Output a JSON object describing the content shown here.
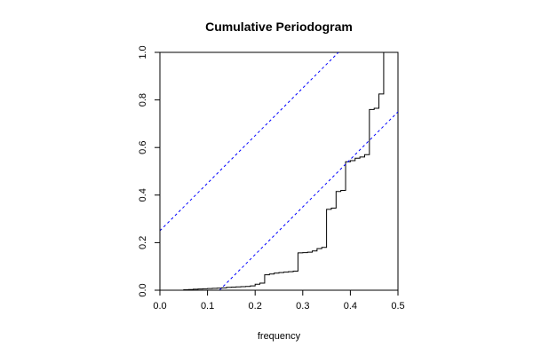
{
  "chart_data": {
    "type": "line",
    "title": "Cumulative Periodogram",
    "xlabel": "frequency",
    "ylabel": "",
    "xlim": [
      0.0,
      0.5
    ],
    "ylim": [
      0.0,
      1.0
    ],
    "x_ticks": [
      0.0,
      0.1,
      0.2,
      0.3,
      0.4,
      0.5
    ],
    "x_tick_labels": [
      "0.0",
      "0.1",
      "0.2",
      "0.3",
      "0.4",
      "0.5"
    ],
    "y_ticks": [
      0.0,
      0.2,
      0.4,
      0.6,
      0.8,
      1.0
    ],
    "y_tick_labels": [
      "0.0",
      "0.2",
      "0.4",
      "0.6",
      "0.8",
      "1.0"
    ],
    "grid": false,
    "legend": "none",
    "series": [
      {
        "style": "step",
        "color": "#000000",
        "x": [
          0.0,
          0.05,
          0.06,
          0.07,
          0.08,
          0.09,
          0.1,
          0.11,
          0.12,
          0.13,
          0.14,
          0.15,
          0.16,
          0.17,
          0.18,
          0.19,
          0.2,
          0.21,
          0.22,
          0.23,
          0.24,
          0.25,
          0.26,
          0.27,
          0.28,
          0.29,
          0.3,
          0.31,
          0.32,
          0.33,
          0.34,
          0.35,
          0.36,
          0.37,
          0.38,
          0.39,
          0.4,
          0.41,
          0.42,
          0.43,
          0.44,
          0.45,
          0.46,
          0.47,
          0.475
        ],
        "y": [
          0.0,
          0.002,
          0.003,
          0.004,
          0.005,
          0.006,
          0.007,
          0.008,
          0.009,
          0.01,
          0.012,
          0.013,
          0.014,
          0.015,
          0.016,
          0.018,
          0.025,
          0.03,
          0.065,
          0.068,
          0.072,
          0.074,
          0.076,
          0.078,
          0.08,
          0.157,
          0.158,
          0.16,
          0.165,
          0.175,
          0.18,
          0.34,
          0.345,
          0.415,
          0.42,
          0.54,
          0.545,
          0.555,
          0.56,
          0.57,
          0.76,
          0.765,
          0.825,
          1.0,
          1.0
        ]
      },
      {
        "style": "dashed",
        "color": "#0000ff",
        "x": [
          0.0,
          0.375
        ],
        "y": [
          0.25,
          1.0
        ]
      },
      {
        "style": "dashed",
        "color": "#0000ff",
        "x": [
          0.125,
          0.5
        ],
        "y": [
          0.0,
          0.75
        ]
      }
    ]
  }
}
